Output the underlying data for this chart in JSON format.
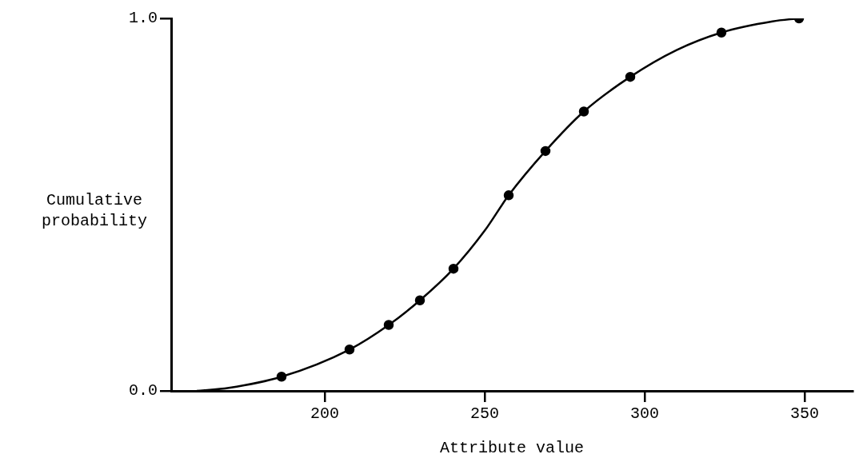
{
  "chart_data": {
    "type": "scatter",
    "xlabel": "Attribute value",
    "ylabel": "Cumulative probability",
    "xlim": [
      152,
      365
    ],
    "ylim": [
      0,
      1
    ],
    "xticks": [
      200,
      250,
      300,
      350
    ],
    "yticks": [
      {
        "value": 0,
        "label": "0.0"
      },
      {
        "value": 1,
        "label": "1.0"
      }
    ],
    "grid": false,
    "legend": false,
    "series": [
      {
        "marker": "circle",
        "color": "#000000",
        "x": [
          186.5,
          207.75,
          220,
          229.75,
          240.25,
          257.5,
          269,
          281,
          295.5,
          324,
          348.25
        ],
        "values": [
          0.038,
          0.111,
          0.177,
          0.243,
          0.328,
          0.525,
          0.644,
          0.75,
          0.843,
          0.962,
          1.0
        ]
      },
      {
        "type": "line",
        "marker": "none",
        "color": "#000000",
        "x": [
          160,
          170,
          186.5,
          207.75,
          220,
          229.75,
          240.25,
          250,
          257.5,
          269,
          281,
          295.5,
          310,
          324,
          340,
          348.25
        ],
        "values": [
          0,
          0.008,
          0.038,
          0.111,
          0.177,
          0.243,
          0.328,
          0.43,
          0.525,
          0.644,
          0.75,
          0.843,
          0.915,
          0.962,
          0.992,
          1.0
        ]
      }
    ]
  }
}
